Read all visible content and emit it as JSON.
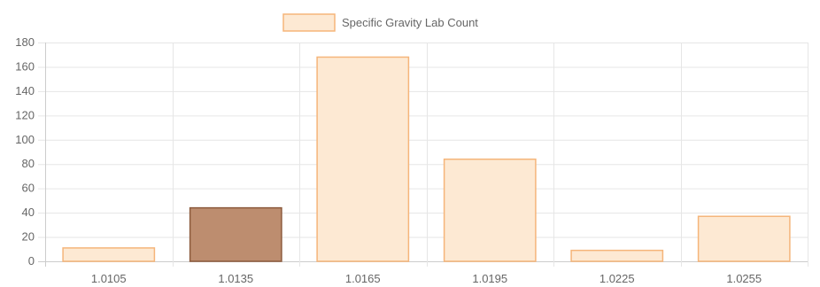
{
  "chart_data": {
    "type": "bar",
    "categories": [
      "1.0105",
      "1.0135",
      "1.0165",
      "1.0195",
      "1.0225",
      "1.0255"
    ],
    "series": [
      {
        "name": "Specific Gravity Lab Count",
        "values": [
          11,
          44,
          168,
          84,
          9,
          37
        ]
      }
    ],
    "ylim": [
      0,
      180
    ],
    "yticks": [
      0,
      20,
      40,
      60,
      80,
      100,
      120,
      140,
      160,
      180
    ],
    "grid": true,
    "legend": "top-center",
    "highlight_index": 1,
    "colors": {
      "bar_fill": "#fde9d3",
      "bar_stroke": "#f5b57a",
      "highlight_fill": "#bd8d6f",
      "highlight_stroke": "#8c5a3c",
      "grid": "#e6e6e6",
      "axis": "#cccccc"
    }
  }
}
